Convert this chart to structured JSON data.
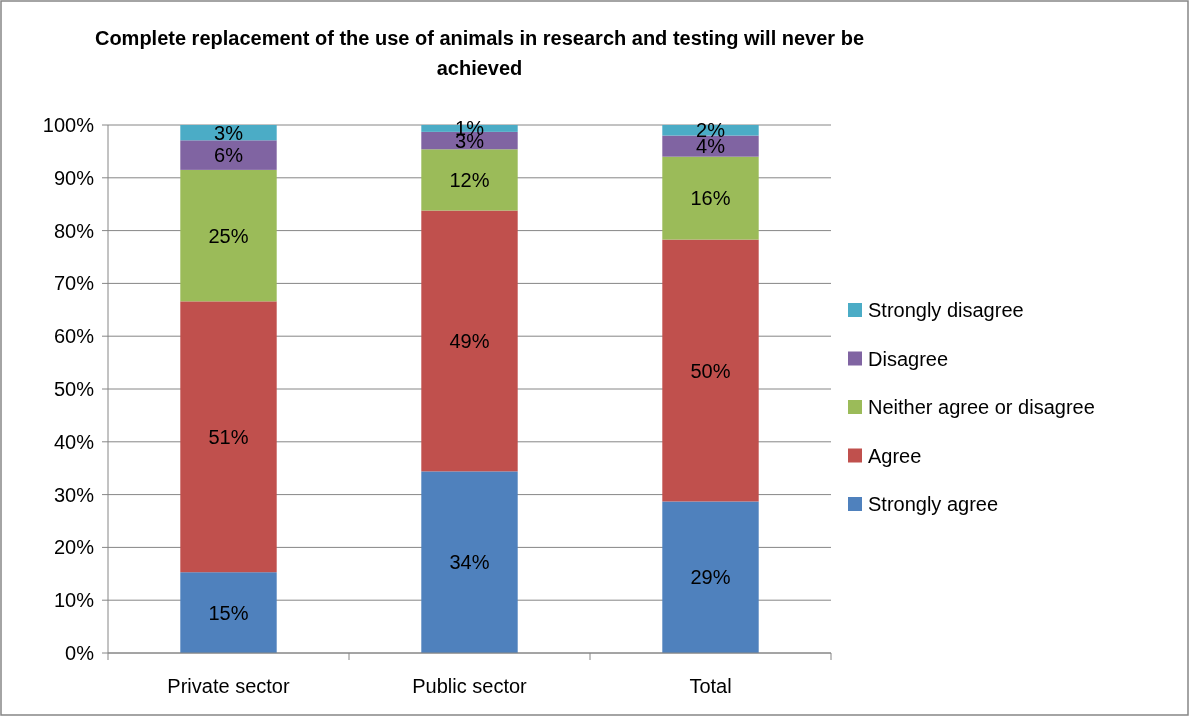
{
  "chart_data": {
    "type": "bar",
    "stacked": true,
    "title": "Complete replacement of the use of animals in research and testing will never be achieved",
    "categories": [
      "Private sector",
      "Public sector",
      "Total"
    ],
    "series": [
      {
        "name": "Strongly agree",
        "color": "#4f81bd",
        "values": [
          15.3,
          34.4,
          28.7
        ],
        "value_labels": [
          "15%",
          "34%",
          "29%"
        ]
      },
      {
        "name": "Agree",
        "color": "#c0504d",
        "values": [
          51.3,
          49.4,
          49.6
        ],
        "value_labels": [
          "51%",
          "49%",
          "50%"
        ]
      },
      {
        "name": "Neither agree or disagree",
        "color": "#9bbb59",
        "values": [
          24.9,
          11.6,
          15.7
        ],
        "value_labels": [
          "25%",
          "12%",
          "16%"
        ]
      },
      {
        "name": "Disagree",
        "color": "#8064a2",
        "values": [
          5.6,
          3.3,
          4.0
        ],
        "value_labels": [
          "6%",
          "3%",
          "4%"
        ]
      },
      {
        "name": "Strongly disagree",
        "color": "#4bacc6",
        "values": [
          2.9,
          1.3,
          2.0
        ],
        "value_labels": [
          "3%",
          "1%",
          "2%"
        ]
      }
    ],
    "ylim": [
      0,
      100
    ],
    "yticks": [
      {
        "value": 0,
        "label": "0%"
      },
      {
        "value": 10,
        "label": "10%"
      },
      {
        "value": 20,
        "label": "20%"
      },
      {
        "value": 30,
        "label": "30%"
      },
      {
        "value": 40,
        "label": "40%"
      },
      {
        "value": 50,
        "label": "50%"
      },
      {
        "value": 60,
        "label": "60%"
      },
      {
        "value": 70,
        "label": "70%"
      },
      {
        "value": 80,
        "label": "80%"
      },
      {
        "value": 90,
        "label": "90%"
      },
      {
        "value": 100,
        "label": "100%"
      }
    ],
    "grid": "y",
    "legend": "right"
  }
}
